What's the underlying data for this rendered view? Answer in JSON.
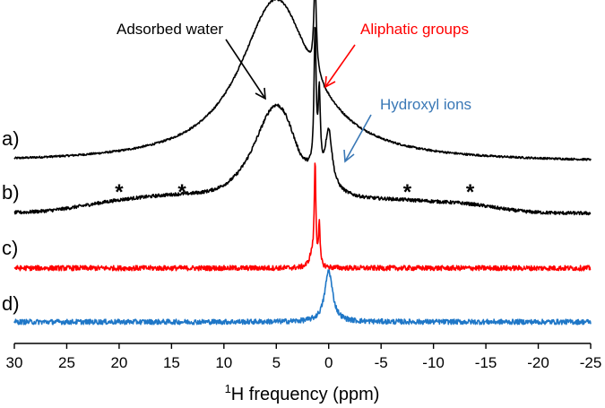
{
  "chart_data": {
    "type": "line",
    "title": "",
    "xlabel": {
      "sup": "1",
      "text": "H frequency (ppm)"
    },
    "ylabel": "",
    "x_range": [
      30,
      -25
    ],
    "x_ticks": [
      "30",
      "25",
      "20",
      "15",
      "10",
      "5",
      "0",
      "-5",
      "-10",
      "-15",
      "-20",
      "-25"
    ],
    "grid": false,
    "legend": "none",
    "series": [
      {
        "label": "a)",
        "color": "#000000",
        "baseline": 0.02,
        "peaks": [
          {
            "center": 5.0,
            "height": 1.0,
            "width": 4.2,
            "shape": "lorentzian"
          },
          {
            "center": 1.3,
            "height": 0.55,
            "width": 0.15,
            "shape": "lorentzian"
          }
        ],
        "noise": 0.006
      },
      {
        "label": "b)",
        "color": "#000000",
        "baseline": 0.02,
        "peaks": [
          {
            "center": 5.0,
            "height": 0.78,
            "width": 2.8,
            "shape": "lorentzian"
          },
          {
            "center": 1.3,
            "height": 1.0,
            "width": 0.12,
            "shape": "lorentzian"
          },
          {
            "center": 0.9,
            "height": 0.55,
            "width": 0.12,
            "shape": "lorentzian"
          },
          {
            "center": 0.0,
            "height": 0.4,
            "width": 0.4,
            "shape": "lorentzian"
          },
          {
            "center": 19.5,
            "height": 0.07,
            "width": 4.0,
            "shape": "gaussian"
          },
          {
            "center": 14.0,
            "height": 0.05,
            "width": 3.0,
            "shape": "gaussian"
          },
          {
            "center": -7.0,
            "height": 0.06,
            "width": 4.0,
            "shape": "gaussian"
          },
          {
            "center": -13.5,
            "height": 0.04,
            "width": 3.0,
            "shape": "gaussian"
          }
        ],
        "dip": {
          "center": 2.7,
          "depth": 0.05,
          "width": 0.8
        },
        "noise": 0.012,
        "spinning_sidebands_ppm": [
          20,
          14,
          -7.5,
          -13.5
        ]
      },
      {
        "label": "c)",
        "color": "#ff0000",
        "baseline": 0.0,
        "peaks": [
          {
            "center": 1.3,
            "height": 1.0,
            "width": 0.09,
            "shape": "lorentzian"
          },
          {
            "center": 0.9,
            "height": 0.4,
            "width": 0.09,
            "shape": "lorentzian"
          },
          {
            "center": 1.6,
            "height": 0.12,
            "width": 0.3,
            "shape": "lorentzian"
          }
        ],
        "noise": 0.025
      },
      {
        "label": "d)",
        "color": "#1f77c7",
        "baseline": 0.0,
        "peaks": [
          {
            "center": 0.0,
            "height": 1.0,
            "width": 0.45,
            "shape": "lorentzian"
          }
        ],
        "noise": 0.05
      }
    ],
    "annotations": [
      {
        "text": "Adsorbed water",
        "color": "#000000",
        "arrow_to_ppm": 5.5
      },
      {
        "text": "Aliphatic groups",
        "color": "#ff0000",
        "arrow_to_ppm": 0.6
      },
      {
        "text": "Hydroxyl ions",
        "color": "#3a78b6",
        "arrow_to_ppm": 1.0
      }
    ],
    "sideband_marker": "*"
  }
}
